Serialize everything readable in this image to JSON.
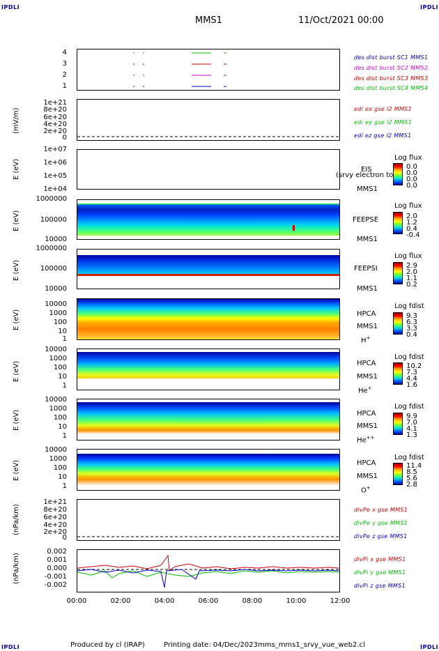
{
  "header": {
    "corner_label": "IPDLI",
    "spacecraft": "MMS1",
    "datetime": "11/Oct/2021 00:00"
  },
  "footer": {
    "produced_by": "Produced by cl (IRAP)",
    "printing_date": "Printing date: 04/Dec/2023",
    "file_name": "mms_mms1_srvy_vue_web2.cl"
  },
  "colors": {
    "blue": "#0000cc",
    "magenta": "#cc00cc",
    "red": "#cc0000",
    "green": "#00bb00"
  },
  "chart_data": {
    "type": "heatmap",
    "x_ticks": [
      "00:00",
      "02:00",
      "04:00",
      "06:00",
      "08:00",
      "10:00",
      "12:00"
    ],
    "xlim": [
      "00:00",
      "12:00"
    ],
    "panels": [
      {
        "id": "burst",
        "y_ticks": [
          "4",
          "3",
          "2",
          "1"
        ],
        "legend": [
          {
            "text": "des dist burst SC1 MMS1",
            "color": "#0000cc"
          },
          {
            "text": "des dist burst SC2 MMS2",
            "color": "#cc00cc"
          },
          {
            "text": "des dist burst SC3 MMS3",
            "color": "#cc0000"
          },
          {
            "text": "des dist burst SC4 MMS4",
            "color": "#00bb00"
          }
        ]
      },
      {
        "id": "edi",
        "ylabel": "(mV/m)",
        "y_ticks": [
          "1e+21",
          "8e+20",
          "6e+20",
          "4e+20",
          "2e+20",
          "0"
        ],
        "legend": [
          {
            "text": "edi ex gse l2 MMS1",
            "color": "#cc0000"
          },
          {
            "text": "edi ey gse l2 MMS1",
            "color": "#00bb00"
          },
          {
            "text": "edi ez gse l2 MMS1",
            "color": "#0000cc"
          }
        ]
      },
      {
        "id": "eis",
        "ylabel": "E (eV)",
        "y_ticks": [
          "1e+07",
          "1e+06",
          "1e+05",
          "1e+04"
        ],
        "right_labels": [
          "EIS",
          "MMS1"
        ],
        "overlay": "(srvy electron to",
        "colorbar": {
          "title": "Log flux",
          "values": [
            "0.0",
            "0.0",
            "0.0",
            "0.0"
          ]
        }
      },
      {
        "id": "feepse",
        "ylabel": "E (eV)",
        "y_ticks": [
          "1000000",
          "100000",
          "10000"
        ],
        "right_labels": [
          "FEEPSE",
          "MMS1"
        ],
        "colorbar": {
          "title": "Log flux",
          "values": [
            "2.0",
            "1.2",
            "0.4",
            "-0.4"
          ]
        }
      },
      {
        "id": "feepsi",
        "ylabel": "E (eV)",
        "y_ticks": [
          "1000000",
          "100000",
          "10000"
        ],
        "right_labels": [
          "FEEPSI",
          "MMS1"
        ],
        "colorbar": {
          "title": "Log flux",
          "values": [
            "2.9",
            "2.0",
            "1.1",
            "0.2"
          ]
        }
      },
      {
        "id": "hpca_h",
        "ylabel": "E (eV)",
        "y_ticks": [
          "10000",
          "1000",
          "100",
          "10",
          "1"
        ],
        "right_labels": [
          "HPCA",
          "MMS1"
        ],
        "species_base": "H",
        "species_sup": "+",
        "colorbar": {
          "title": "Log fdist",
          "values": [
            "9.3",
            "6.3",
            "3.3",
            "0.4"
          ]
        }
      },
      {
        "id": "hpca_he",
        "ylabel": "E (eV)",
        "y_ticks": [
          "10000",
          "1000",
          "100",
          "10",
          "1"
        ],
        "right_labels": [
          "HPCA",
          "MMS1"
        ],
        "species_base": "He",
        "species_sup": "+",
        "colorbar": {
          "title": "Log fdist",
          "values": [
            "10.2",
            "7.3",
            "4.4",
            "1.6"
          ]
        }
      },
      {
        "id": "hpca_hepp",
        "ylabel": "E (eV)",
        "y_ticks": [
          "10000",
          "1000",
          "100",
          "10",
          "1"
        ],
        "right_labels": [
          "HPCA",
          "MMS1"
        ],
        "species_base": "He",
        "species_sup": "++",
        "colorbar": {
          "title": "Log fdist",
          "values": [
            "9.9",
            "7.0",
            "4.1",
            "1.3"
          ]
        }
      },
      {
        "id": "hpca_o",
        "ylabel": "E (eV)",
        "y_ticks": [
          "10000",
          "1000",
          "100",
          "10",
          "1"
        ],
        "right_labels": [
          "HPCA",
          "MMS1"
        ],
        "species_base": "O",
        "species_sup": "+",
        "colorbar": {
          "title": "Log fdist",
          "values": [
            "11.4",
            "8.5",
            "5.6",
            "2.8"
          ]
        }
      },
      {
        "id": "divpe",
        "ylabel": "(nPa/km)",
        "y_ticks": [
          "1e+21",
          "8e+20",
          "6e+20",
          "4e+20",
          "2e+20",
          "0"
        ],
        "legend": [
          {
            "text": "divPe x gse MMS1",
            "color": "#cc0000"
          },
          {
            "text": "divPe y gse MMS1",
            "color": "#00bb00"
          },
          {
            "text": "divPe z gse MMS1",
            "color": "#0000cc"
          }
        ]
      },
      {
        "id": "divpi",
        "ylabel": "(nPa/km)",
        "y_ticks": [
          "0.002",
          "0.001",
          "0.000",
          "-0.001",
          "-0.002"
        ],
        "legend": [
          {
            "text": "divPi x gse MMS1",
            "color": "#cc0000"
          },
          {
            "text": "divPi y gse MMS1",
            "color": "#00bb00"
          },
          {
            "text": "divPi z gse MMS1",
            "color": "#0000cc"
          }
        ]
      }
    ]
  }
}
